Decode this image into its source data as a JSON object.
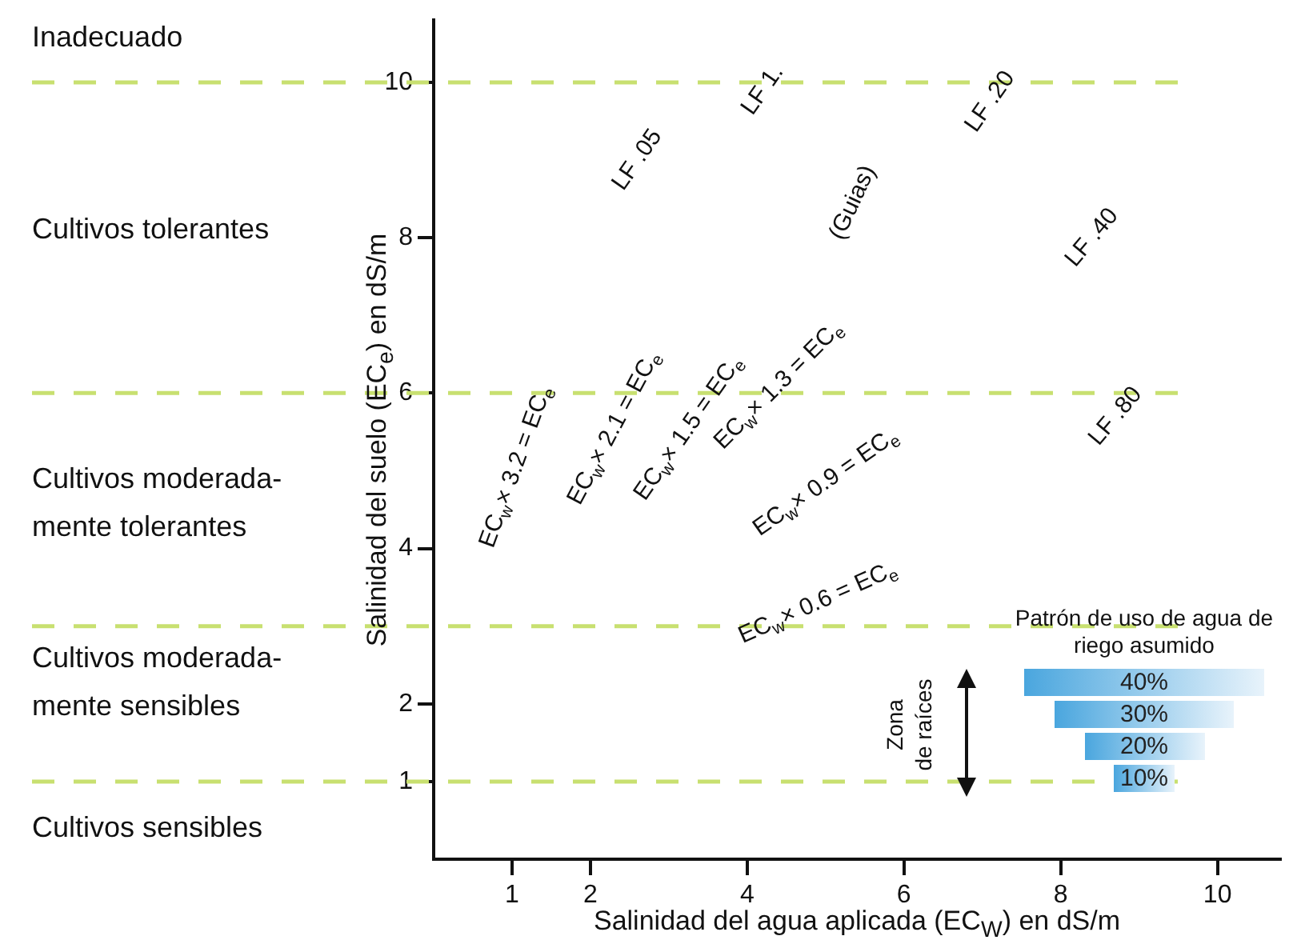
{
  "chart_data": [
    {
      "type": "line",
      "xlabel": "Salinidad del agua aplicada (EC$_{W}$) en dS/m",
      "ylabel": "Salinidad del suelo (EC$_{e}$) en dS/m",
      "xlim": [
        0,
        10.8
      ],
      "ylim": [
        0,
        10.8
      ],
      "xticks": [
        1,
        2,
        4,
        6,
        8,
        10
      ],
      "yticks": [
        1,
        2,
        4,
        6,
        8,
        10
      ],
      "ref_lines": [
        {
          "axis": "y",
          "value": 1,
          "color": "#c8e070",
          "line_style": "dashed"
        },
        {
          "axis": "y",
          "value": 3,
          "color": "#c8e070",
          "line_style": "dashed"
        },
        {
          "axis": "y",
          "value": 6,
          "color": "#c8e070",
          "line_style": "dashed"
        },
        {
          "axis": "y",
          "value": 10,
          "color": "#c8e070",
          "line_style": "dashed"
        }
      ],
      "annotations": [
        "Inadecuado",
        "Cultivos tolerantes",
        "Cultivos moderada-\nmente tolerantes",
        "Cultivos moderada-\nmente sensibles",
        "Cultivos sensibles",
        "LF .05",
        "LF 1.",
        "LF .20",
        "(Guias)",
        "LF .40",
        "LF .80",
        "EC$_{w}$× 3.2 = EC$_{e}$",
        "EC$_{w}$× 2.1 = EC$_{e}$",
        "EC$_{w}$× 1.5 = EC$_{e}$",
        "EC$_{w}$× 1.3 = EC$_{e}$",
        "EC$_{w}$× 0.9 = EC$_{e}$",
        "EC$_{w}$× 0.6 = EC$_{e}$"
      ]
    },
    {
      "type": "other",
      "title": "Patrón de uso de agua de riego asumido",
      "categories": [
        null,
        null,
        null,
        null
      ],
      "values": [
        40,
        30,
        20,
        10
      ],
      "value_labels": [
        "40%",
        "30%",
        "20%",
        "10%"
      ],
      "color": "#4aa6de",
      "annotations": [
        "Zona\nde raíces"
      ]
    }
  ]
}
